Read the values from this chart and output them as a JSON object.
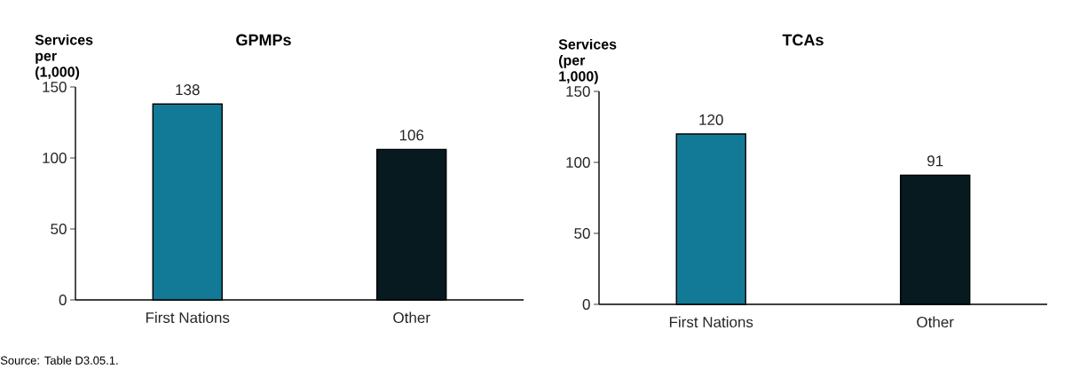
{
  "chart_data": [
    {
      "type": "bar",
      "title": "GPMPs",
      "ylabel": "Services per (1,000)",
      "categories": [
        "First Nations",
        "Other"
      ],
      "values": [
        138,
        106
      ],
      "colors": [
        "#127a96",
        "#061a20"
      ],
      "ylim": [
        0,
        150
      ],
      "yticks": [
        0,
        50,
        100,
        150
      ],
      "data_labels": true,
      "annotations": [
        "Source: Table D3.05.1."
      ]
    },
    {
      "type": "bar",
      "title": "TCAs",
      "ylabel": "Services (per 1,000)",
      "categories": [
        "First Nations",
        "Other"
      ],
      "values": [
        120,
        91
      ],
      "colors": [
        "#127a96",
        "#061a20"
      ],
      "ylim": [
        0,
        150
      ],
      "yticks": [
        0,
        50,
        100,
        150
      ],
      "data_labels": true
    }
  ]
}
